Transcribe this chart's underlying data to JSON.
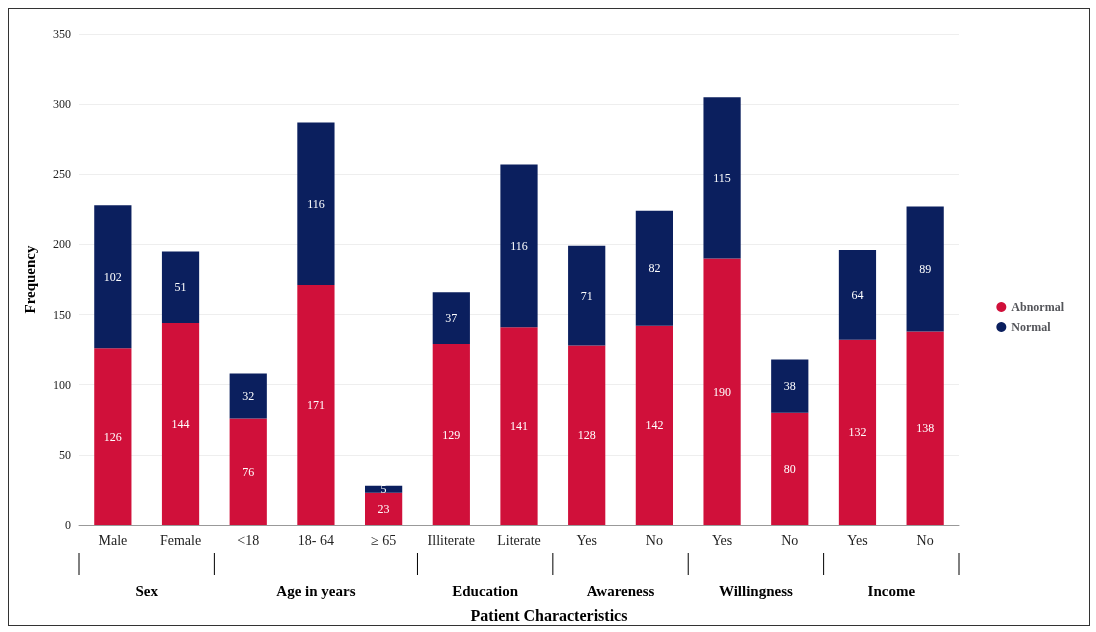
{
  "chart_data": {
    "type": "bar",
    "stacked": true,
    "xlabel": "Patient Characteristics",
    "ylabel": "Frequency",
    "categories": [
      "Male",
      "Female",
      "<18",
      "18- 64",
      "≥ 65",
      "Illiterate",
      "Literate",
      "Yes",
      "No",
      "Yes",
      "No",
      "Yes",
      "No"
    ],
    "series": [
      {
        "name": "Abnormal",
        "color": "#d0103a",
        "values": [
          126,
          144,
          76,
          171,
          23,
          129,
          141,
          128,
          142,
          190,
          80,
          132,
          138
        ]
      },
      {
        "name": "Normal",
        "color": "#0b1f5e",
        "values": [
          102,
          51,
          32,
          116,
          5,
          37,
          116,
          71,
          82,
          115,
          38,
          64,
          89
        ]
      }
    ],
    "ylim": [
      0,
      350
    ],
    "yticks": [
      0,
      50,
      100,
      150,
      200,
      250,
      300,
      350
    ],
    "grid": "y",
    "legend": "right",
    "data_labels": true,
    "annotations": [
      "Sex",
      "Age in years",
      "Education",
      "Awareness",
      "Willingness",
      "Income"
    ]
  }
}
